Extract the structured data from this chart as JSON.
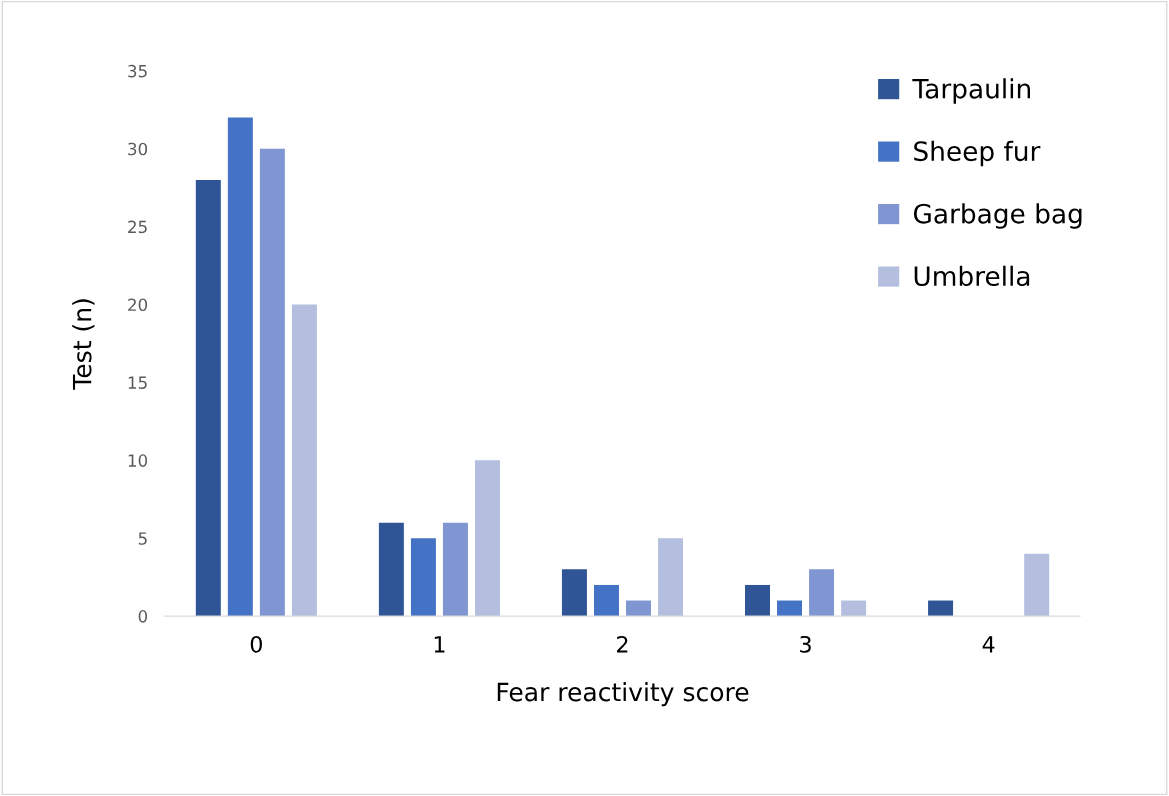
{
  "chart_data": {
    "type": "bar",
    "xlabel": "Fear reactivity score",
    "ylabel": "Test (n)",
    "categories": [
      "0",
      "1",
      "2",
      "3",
      "4"
    ],
    "series": [
      {
        "name": "Tarpaulin",
        "color": "#2f5597",
        "values": [
          28,
          6,
          3,
          2,
          1
        ]
      },
      {
        "name": "Sheep fur",
        "color": "#4472c4",
        "values": [
          32,
          5,
          2,
          1,
          0
        ]
      },
      {
        "name": "Garbage bag",
        "color": "#7f96d2",
        "values": [
          30,
          6,
          1,
          3,
          0
        ]
      },
      {
        "name": "Umbrella",
        "color": "#b4bfe0",
        "values": [
          20,
          10,
          5,
          1,
          4
        ]
      }
    ],
    "ylim": [
      0,
      35
    ],
    "yticks": [
      0,
      5,
      10,
      15,
      20,
      25,
      30,
      35
    ],
    "grid": false,
    "legend": "top right"
  }
}
